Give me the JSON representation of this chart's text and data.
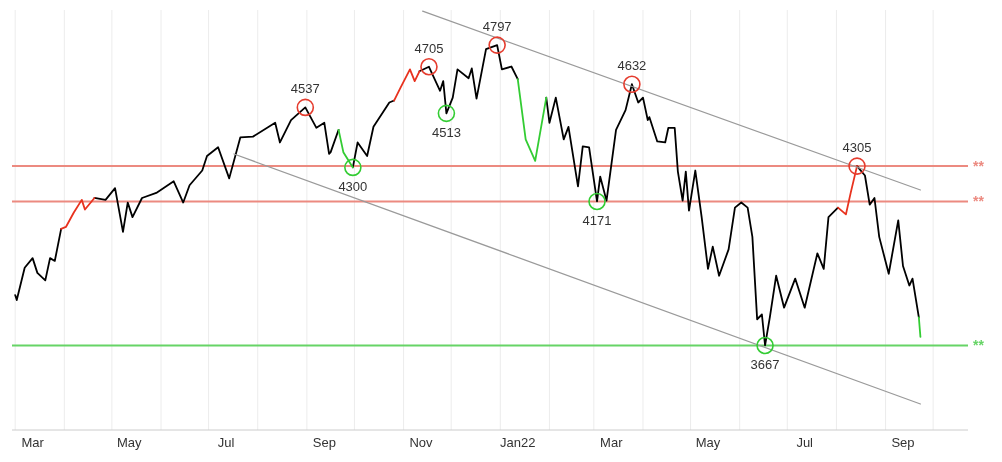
{
  "chart_data": {
    "type": "line",
    "log": "y",
    "grid": "x",
    "tick_labels": "x",
    "xlim": [
      "2021-02-27",
      "2022-10-23"
    ],
    "ylim": [
      3400,
      4950
    ],
    "xticks": [
      {
        "value": "2021-03-01",
        "label": null
      },
      {
        "value": "2021-04-01",
        "label": null
      },
      {
        "value": "2021-05-01",
        "label": null
      },
      {
        "value": "2021-06-01",
        "label": null
      },
      {
        "value": "2021-07-01",
        "label": null
      },
      {
        "value": "2021-08-01",
        "label": null
      },
      {
        "value": "2021-09-01",
        "label": null
      },
      {
        "value": "2021-10-01",
        "label": null
      },
      {
        "value": "2021-11-01",
        "label": null
      },
      {
        "value": "2021-12-01",
        "label": null
      },
      {
        "value": "2022-01-01",
        "label": null
      },
      {
        "value": "2022-02-01",
        "label": null
      },
      {
        "value": "2022-03-01",
        "label": null
      },
      {
        "value": "2022-04-01",
        "label": null
      },
      {
        "value": "2022-05-01",
        "label": null
      },
      {
        "value": "2022-06-01",
        "label": null
      },
      {
        "value": "2022-07-01",
        "label": null
      },
      {
        "value": "2022-08-01",
        "label": null
      },
      {
        "value": "2022-09-01",
        "label": null
      },
      {
        "value": "2022-10-01",
        "label": null
      },
      {
        "value": "2021-03-12",
        "label": "Mar"
      },
      {
        "value": "2021-05-12",
        "label": "May"
      },
      {
        "value": "2021-07-12",
        "label": "Jul"
      },
      {
        "value": "2021-09-12",
        "label": "Sep"
      },
      {
        "value": "2021-11-12",
        "label": "Nov"
      },
      {
        "value": "2022-01-12",
        "label": "Jan22"
      },
      {
        "value": "2022-03-12",
        "label": "Mar"
      },
      {
        "value": "2022-05-12",
        "label": "May"
      },
      {
        "value": "2022-07-12",
        "label": "Jul"
      },
      {
        "value": "2022-09-12",
        "label": "Sep"
      }
    ],
    "x": [
      "2021-03-01",
      "2021-03-02",
      "2021-03-07",
      "2021-03-12",
      "2021-03-15",
      "2021-03-20",
      "2021-03-23",
      "2021-03-26",
      "2021-03-30",
      "2021-04-02",
      "2021-04-07",
      "2021-04-12",
      "2021-04-14",
      "2021-04-20",
      "2021-04-27",
      "2021-05-03",
      "2021-05-08",
      "2021-05-11",
      "2021-05-14",
      "2021-05-20",
      "2021-05-29",
      "2021-06-09",
      "2021-06-15",
      "2021-06-19",
      "2021-06-27",
      "2021-06-30",
      "2021-07-07",
      "2021-07-14",
      "2021-07-21",
      "2021-07-29",
      "2021-08-12",
      "2021-08-15",
      "2021-08-22",
      "2021-08-31",
      "2021-09-07",
      "2021-09-12",
      "2021-09-15",
      "2021-09-16",
      "2021-09-21",
      "2021-09-24",
      "2021-09-30",
      "2021-10-03",
      "2021-10-09",
      "2021-10-13",
      "2021-10-23",
      "2021-10-26",
      "2021-10-30",
      "2021-11-05",
      "2021-11-08",
      "2021-11-11",
      "2021-11-17",
      "2021-11-24",
      "2021-11-26",
      "2021-11-28",
      "2021-12-02",
      "2021-12-05",
      "2021-12-12",
      "2021-12-14",
      "2021-12-17",
      "2021-12-23",
      "2021-12-30",
      "2022-01-02",
      "2022-01-08",
      "2022-01-12",
      "2022-01-17",
      "2022-01-23",
      "2022-01-30",
      "2022-02-01",
      "2022-02-05",
      "2022-02-10",
      "2022-02-13",
      "2022-02-19",
      "2022-02-22",
      "2022-02-26",
      "2022-03-03",
      "2022-03-05",
      "2022-03-09",
      "2022-03-15",
      "2022-03-21",
      "2022-03-25",
      "2022-03-29",
      "2022-04-01",
      "2022-04-04",
      "2022-04-05",
      "2022-04-10",
      "2022-04-15",
      "2022-04-17",
      "2022-04-21",
      "2022-04-23",
      "2022-04-26",
      "2022-04-28",
      "2022-04-30",
      "2022-05-04",
      "2022-05-08",
      "2022-05-12",
      "2022-05-15",
      "2022-05-19",
      "2022-05-25",
      "2022-05-29",
      "2022-06-02",
      "2022-06-06",
      "2022-06-09",
      "2022-06-12",
      "2022-06-15",
      "2022-06-17",
      "2022-06-20",
      "2022-06-24",
      "2022-06-29",
      "2022-07-06",
      "2022-07-12",
      "2022-07-20",
      "2022-07-24",
      "2022-07-27",
      "2022-08-02",
      "2022-08-07",
      "2022-08-10",
      "2022-08-14",
      "2022-08-19",
      "2022-08-22",
      "2022-08-25",
      "2022-08-28",
      "2022-09-03",
      "2022-09-09",
      "2022-09-12",
      "2022-09-16",
      "2022-09-18",
      "2022-09-22",
      "2022-09-23"
    ],
    "series": [
      {
        "color": "#000000",
        "values": [
          3836,
          3819,
          3931,
          3965,
          3913,
          3887,
          3965,
          3955,
          4070,
          null,
          null,
          null,
          null,
          4184,
          4177,
          4221,
          4059,
          4167,
          4113,
          4184,
          4203,
          4247,
          4167,
          4232,
          4288,
          4344,
          4378,
          4258,
          4417,
          4420,
          4475,
          4397,
          4486,
          4537,
          4455,
          4475,
          4352,
          4359,
          4447,
          null,
          4300,
          4397,
          4344,
          4459,
          4557,
          4565,
          null,
          null,
          null,
          4686,
          4705,
          4605,
          4645,
          4513,
          4577,
          4694,
          4657,
          4698,
          4573,
          4780,
          4797,
          4694,
          4706,
          4653,
          null,
          null,
          4577,
          4475,
          4577,
          4409,
          4459,
          4228,
          4382,
          4378,
          4171,
          4265,
          4174,
          4447,
          4526,
          4632,
          4557,
          4577,
          4486,
          4498,
          4401,
          4397,
          4455,
          4455,
          4284,
          4174,
          4284,
          4137,
          4288,
          4113,
          3927,
          4006,
          3903,
          3996,
          4148,
          4167,
          4148,
          4041,
          3754,
          3770,
          3667,
          3760,
          3903,
          3793,
          3893,
          3793,
          3982,
          3927,
          4113,
          4148,
          null,
          null,
          4305,
          4269,
          4159,
          4184,
          4041,
          3910,
          4101,
          3937,
          3869,
          3893,
          3760,
          null
        ]
      },
      {
        "color": "#e8321e",
        "values": [
          null,
          null,
          null,
          null,
          null,
          null,
          null,
          null,
          4070,
          4077,
          4130,
          4177,
          4141,
          4184,
          null,
          null,
          null,
          null,
          null,
          null,
          null,
          null,
          null,
          null,
          null,
          null,
          null,
          null,
          null,
          null,
          null,
          null,
          null,
          null,
          null,
          null,
          null,
          null,
          null,
          null,
          null,
          null,
          null,
          null,
          null,
          4565,
          4617,
          4694,
          4645,
          4686,
          null,
          null,
          null,
          null,
          null,
          null,
          null,
          null,
          null,
          null,
          null,
          null,
          null,
          null,
          null,
          null,
          null,
          null,
          null,
          null,
          null,
          null,
          null,
          null,
          null,
          null,
          null,
          null,
          null,
          null,
          null,
          null,
          null,
          null,
          null,
          null,
          null,
          null,
          null,
          null,
          null,
          null,
          null,
          null,
          null,
          null,
          null,
          null,
          null,
          null,
          null,
          null,
          null,
          null,
          null,
          null,
          null,
          null,
          null,
          null,
          null,
          null,
          null,
          4148,
          4123,
          4203,
          4305,
          null,
          null,
          null,
          null,
          null,
          null,
          null,
          null,
          null,
          null,
          null
        ]
      },
      {
        "color": "#33cc33",
        "values": [
          null,
          null,
          null,
          null,
          null,
          null,
          null,
          null,
          null,
          null,
          null,
          null,
          null,
          null,
          null,
          null,
          null,
          null,
          null,
          null,
          null,
          null,
          null,
          null,
          null,
          null,
          null,
          null,
          null,
          null,
          null,
          null,
          null,
          null,
          null,
          null,
          null,
          null,
          4447,
          4359,
          4300,
          null,
          null,
          null,
          null,
          null,
          null,
          null,
          null,
          null,
          null,
          null,
          null,
          null,
          null,
          null,
          null,
          null,
          null,
          null,
          null,
          null,
          null,
          4653,
          4409,
          4325,
          4577,
          null,
          null,
          null,
          null,
          null,
          null,
          null,
          null,
          null,
          null,
          null,
          null,
          null,
          null,
          null,
          null,
          null,
          null,
          null,
          null,
          null,
          null,
          null,
          null,
          null,
          null,
          null,
          null,
          null,
          null,
          null,
          null,
          null,
          null,
          null,
          null,
          null,
          null,
          null,
          null,
          null,
          null,
          null,
          null,
          null,
          null,
          null,
          null,
          null,
          null,
          null,
          null,
          null,
          null,
          null,
          null,
          null,
          null,
          null,
          3760,
          3695
        ]
      },
      {
        "color": "#9a9a9a",
        "x": [
          "2021-11-13",
          "2022-09-23"
        ],
        "values": [
          4945,
          4214
        ]
      },
      {
        "color": "#9a9a9a",
        "x": [
          "2021-07-17",
          "2022-09-23"
        ],
        "values": [
          4352,
          3480
        ]
      },
      {
        "type": "scatter",
        "marker": "circle",
        "color": "#e53c2e",
        "x": [
          "2021-08-31",
          "2021-11-17",
          "2021-12-30",
          "2022-03-25",
          "2022-08-14"
        ],
        "values": [
          4537,
          4705,
          4797,
          4632,
          4305
        ],
        "value_labels": [
          "4537",
          "4705",
          "4797",
          "4632",
          "4305"
        ]
      },
      {
        "type": "scatter",
        "marker": "circle",
        "color": "#33cc33",
        "x": [
          "2021-09-30",
          "2021-11-28",
          "2022-03-03",
          "2022-06-17"
        ],
        "values": [
          4300,
          4513,
          4171,
          3667
        ],
        "value_labels": [
          "4300",
          "4513",
          "4171",
          "3667"
        ]
      }
    ],
    "ref_lines": [
      {
        "axis": "y",
        "value": 4305,
        "label": "**",
        "color": "#ec8a80"
      },
      {
        "axis": "y",
        "value": 4171,
        "label": "**",
        "color": "#ec8a80"
      },
      {
        "axis": "y",
        "value": 3667,
        "label": "**",
        "color": "#66d466"
      }
    ]
  }
}
